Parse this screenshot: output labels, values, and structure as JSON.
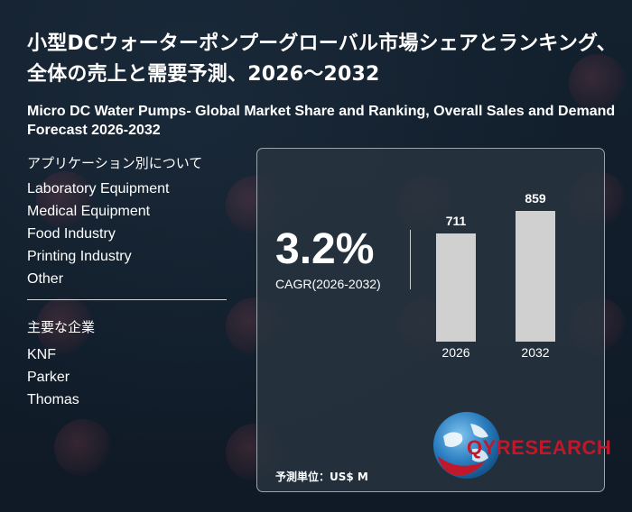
{
  "title_jp": "小型DCウォーターポンプーグローバル市場シェアとランキング、全体の売上と需要予測、2026～2032",
  "title_en": "Micro DC Water Pumps- Global Market Share and Ranking, Overall Sales and Demand Forecast 2026-2032",
  "applications": {
    "heading": "アプリケーション別について",
    "items": [
      "Laboratory Equipment",
      "Medical Equipment",
      "Food Industry",
      "Printing Industry",
      "Other"
    ]
  },
  "companies": {
    "heading": "主要な企業",
    "items": [
      "KNF",
      "Parker",
      "Thomas"
    ]
  },
  "cagr": {
    "value": "3.2%",
    "label": "CAGR(2026-2032)"
  },
  "chart_data": {
    "type": "bar",
    "categories": [
      "2026",
      "2032"
    ],
    "values": [
      711,
      859
    ],
    "title": "",
    "xlabel": "",
    "ylabel": "",
    "unit": "予測単位：US$ M"
  },
  "logo": {
    "text": "QYRESEARCH",
    "icon": "globe-icon",
    "color": "#c0172b"
  },
  "colors": {
    "background": "#101c29",
    "bar": "#d0d0d0"
  }
}
